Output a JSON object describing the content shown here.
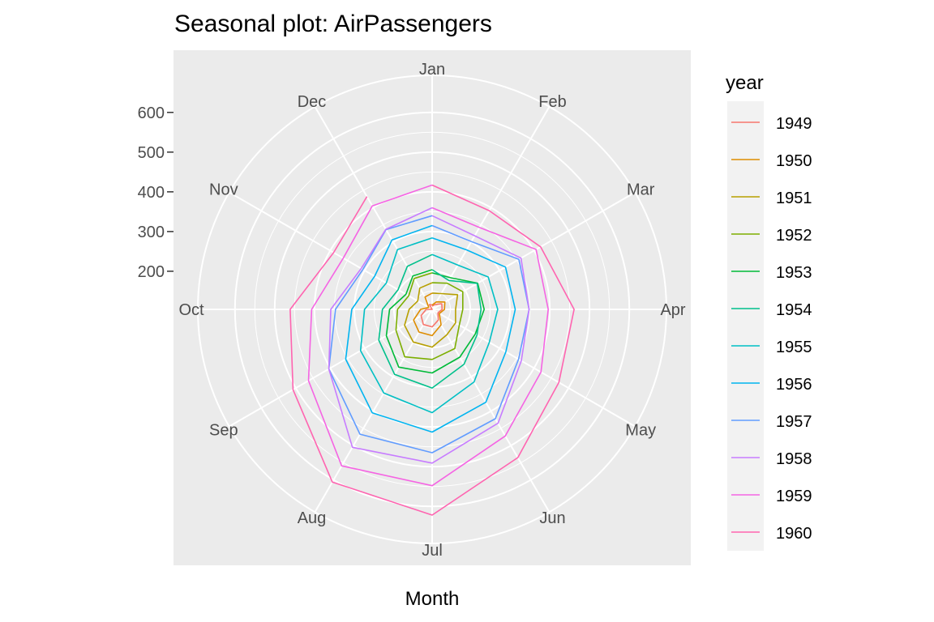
{
  "chart_data": {
    "type": "line",
    "coordinate_system": "polar",
    "title": "Seasonal plot: AirPassengers",
    "xlabel": "Month",
    "ylabel": "",
    "months": [
      "Jan",
      "Feb",
      "Mar",
      "Apr",
      "May",
      "Jun",
      "Jul",
      "Aug",
      "Sep",
      "Oct",
      "Nov",
      "Dec"
    ],
    "radial_ticks": [
      200,
      300,
      400,
      500,
      600
    ],
    "radial_range": [
      104,
      622
    ],
    "legend": {
      "title": "year",
      "placement": "right"
    },
    "grid": true,
    "series": [
      {
        "name": "1949",
        "color": "#F8766D",
        "values": [
          112,
          118,
          132,
          129,
          121,
          135,
          148,
          148,
          136,
          119,
          104,
          118
        ]
      },
      {
        "name": "1950",
        "color": "#DE8C00",
        "values": [
          115,
          126,
          141,
          135,
          125,
          149,
          170,
          170,
          158,
          133,
          114,
          140
        ]
      },
      {
        "name": "1951",
        "color": "#B79F00",
        "values": [
          145,
          150,
          178,
          163,
          172,
          178,
          199,
          199,
          184,
          162,
          146,
          166
        ]
      },
      {
        "name": "1952",
        "color": "#7CAE00",
        "values": [
          171,
          180,
          193,
          181,
          183,
          218,
          230,
          242,
          209,
          191,
          172,
          194
        ]
      },
      {
        "name": "1953",
        "color": "#00BA38",
        "values": [
          196,
          196,
          236,
          235,
          229,
          243,
          264,
          272,
          237,
          211,
          180,
          201
        ]
      },
      {
        "name": "1954",
        "color": "#00C08B",
        "values": [
          204,
          188,
          235,
          227,
          234,
          264,
          302,
          293,
          259,
          229,
          203,
          229
        ]
      },
      {
        "name": "1955",
        "color": "#00BFC4",
        "values": [
          242,
          233,
          267,
          269,
          270,
          315,
          364,
          347,
          312,
          274,
          237,
          278
        ]
      },
      {
        "name": "1956",
        "color": "#00B4F0",
        "values": [
          284,
          277,
          317,
          313,
          318,
          374,
          413,
          405,
          355,
          306,
          271,
          306
        ]
      },
      {
        "name": "1957",
        "color": "#619CFF",
        "values": [
          315,
          301,
          356,
          348,
          355,
          422,
          465,
          467,
          404,
          347,
          305,
          336
        ]
      },
      {
        "name": "1958",
        "color": "#C77CFF",
        "values": [
          340,
          318,
          362,
          348,
          363,
          435,
          491,
          505,
          404,
          359,
          310,
          337
        ]
      },
      {
        "name": "1959",
        "color": "#F564E3",
        "values": [
          360,
          342,
          406,
          396,
          420,
          472,
          548,
          559,
          463,
          407,
          362,
          405
        ]
      },
      {
        "name": "1960",
        "color": "#FF64B0",
        "values": [
          417,
          391,
          419,
          461,
          472,
          535,
          622,
          606,
          508,
          461,
          390,
          432
        ]
      }
    ]
  }
}
